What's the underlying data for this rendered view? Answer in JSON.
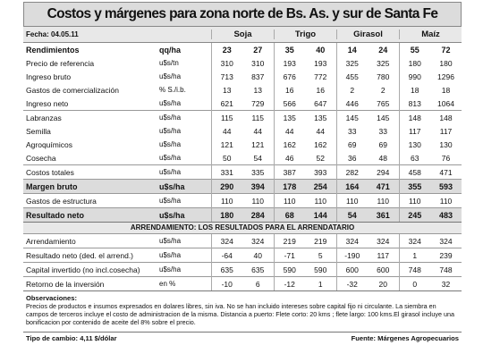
{
  "title": "Costos y márgenes para zona norte de Bs. As. y sur de Santa Fe",
  "fecha": "Fecha: 04.05.11",
  "crops": [
    "Soja",
    "Trigo",
    "Girasol",
    "Maíz"
  ],
  "rows_main": [
    {
      "label": "Rendimientos",
      "unit": "qq/ha",
      "v": [
        "23",
        "27",
        "35",
        "40",
        "14",
        "24",
        "55",
        "72"
      ]
    },
    {
      "label": "Precio de referencia",
      "unit": "u$s/tn",
      "v": [
        "310",
        "310",
        "193",
        "193",
        "325",
        "325",
        "180",
        "180"
      ]
    },
    {
      "label": "Ingreso bruto",
      "unit": "u$s/ha",
      "v": [
        "713",
        "837",
        "676",
        "772",
        "455",
        "780",
        "990",
        "1296"
      ]
    },
    {
      "label": "Gastos de comercialización",
      "unit": "% S./i.b.",
      "v": [
        "13",
        "13",
        "16",
        "16",
        "2",
        "2",
        "18",
        "18"
      ]
    },
    {
      "label": "Ingreso neto",
      "unit": "u$s/ha",
      "v": [
        "621",
        "729",
        "566",
        "647",
        "446",
        "765",
        "813",
        "1064"
      ]
    },
    {
      "label": "Labranzas",
      "unit": "u$s/ha",
      "v": [
        "115",
        "115",
        "135",
        "135",
        "145",
        "145",
        "148",
        "148"
      ]
    },
    {
      "label": "Semilla",
      "unit": "u$s/ha",
      "v": [
        "44",
        "44",
        "44",
        "44",
        "33",
        "33",
        "117",
        "117"
      ]
    },
    {
      "label": "Agroquímicos",
      "unit": "u$s/ha",
      "v": [
        "121",
        "121",
        "162",
        "162",
        "69",
        "69",
        "130",
        "130"
      ]
    },
    {
      "label": "Cosecha",
      "unit": "u$s/ha",
      "v": [
        "50",
        "54",
        "46",
        "52",
        "36",
        "48",
        "63",
        "76"
      ]
    },
    {
      "label": "Costos totales",
      "unit": "u$s/ha",
      "v": [
        "331",
        "335",
        "387",
        "393",
        "282",
        "294",
        "458",
        "471"
      ]
    },
    {
      "label": "Margen bruto",
      "unit": "u$s/ha",
      "v": [
        "290",
        "394",
        "178",
        "254",
        "164",
        "471",
        "355",
        "593"
      ]
    },
    {
      "label": "Gastos de estructura",
      "unit": "u$s/ha",
      "v": [
        "110",
        "110",
        "110",
        "110",
        "110",
        "110",
        "110",
        "110"
      ]
    },
    {
      "label": "Resultado neto",
      "unit": "u$s/ha",
      "v": [
        "180",
        "284",
        "68",
        "144",
        "54",
        "361",
        "245",
        "483"
      ]
    }
  ],
  "arr_title": "ARRENDAMIENTO: LOS RESULTADOS PARA EL ARRENDATARIO",
  "rows_arr": [
    {
      "label": "Arrendamiento",
      "unit": "u$s/ha",
      "v": [
        "324",
        "324",
        "219",
        "219",
        "324",
        "324",
        "324",
        "324"
      ]
    },
    {
      "label": "Resultado neto (ded. el arrend.)",
      "unit": "u$s/ha",
      "v": [
        "-64",
        "40",
        "-71",
        "5",
        "-190",
        "117",
        "1",
        "239"
      ]
    },
    {
      "label": "Capital invertido (no incl.cosecha)",
      "unit": "u$s/ha",
      "v": [
        "635",
        "635",
        "590",
        "590",
        "600",
        "600",
        "748",
        "748"
      ]
    },
    {
      "label": "Retorno de la inversión",
      "unit": "en %",
      "v": [
        "-10",
        "6",
        "-12",
        "1",
        "-32",
        "20",
        "0",
        "32"
      ]
    }
  ],
  "obs_title": "Observaciones:",
  "obs_text": "Precios de productos e insumos expresados en dolares libres, sin iva. No se han incluido intereses sobre capital fijo ni circulante. La siembra en campos de terceros incluye el costo de administracion de la misma. Distancia a puerto: Flete corto: 20 kms ; flete largo: 100 kms.El girasol incluye una bonificacion por contenido de aceite del 8% sobre el precio.",
  "tipo_cambio": "Tipo de cambio: 4,11 $/dólar",
  "fuente": "Fuente: Márgenes Agropecuarios"
}
